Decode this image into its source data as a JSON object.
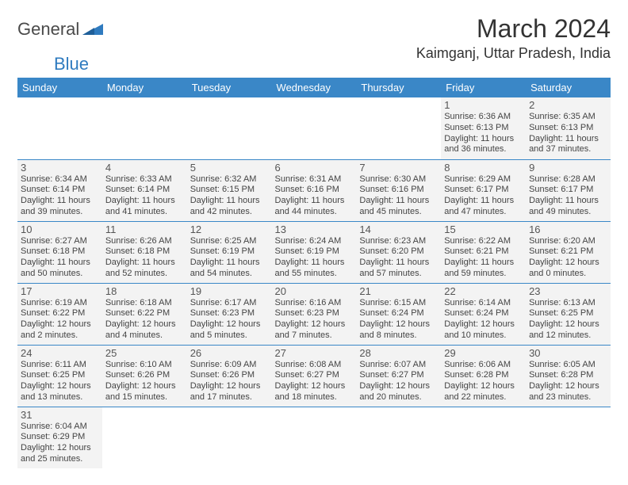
{
  "logo": {
    "part1": "General",
    "part2": "Blue",
    "triangle_color": "#2f7bbf"
  },
  "title": "March 2024",
  "location": "Kaimganj, Uttar Pradesh, India",
  "colors": {
    "header_bg": "#3a87c7",
    "header_text": "#ffffff",
    "cell_bg": "#f3f3f3",
    "rule": "#3a87c7",
    "text": "#333333"
  },
  "font": {
    "family": "Arial",
    "day_header_size": 13,
    "cell_size": 11,
    "title_size": 32,
    "location_size": 18
  },
  "day_headers": [
    "Sunday",
    "Monday",
    "Tuesday",
    "Wednesday",
    "Thursday",
    "Friday",
    "Saturday"
  ],
  "weeks": [
    [
      null,
      null,
      null,
      null,
      null,
      {
        "n": "1",
        "sunrise": "Sunrise: 6:36 AM",
        "sunset": "Sunset: 6:13 PM",
        "day1": "Daylight: 11 hours",
        "day2": "and 36 minutes."
      },
      {
        "n": "2",
        "sunrise": "Sunrise: 6:35 AM",
        "sunset": "Sunset: 6:13 PM",
        "day1": "Daylight: 11 hours",
        "day2": "and 37 minutes."
      }
    ],
    [
      {
        "n": "3",
        "sunrise": "Sunrise: 6:34 AM",
        "sunset": "Sunset: 6:14 PM",
        "day1": "Daylight: 11 hours",
        "day2": "and 39 minutes."
      },
      {
        "n": "4",
        "sunrise": "Sunrise: 6:33 AM",
        "sunset": "Sunset: 6:14 PM",
        "day1": "Daylight: 11 hours",
        "day2": "and 41 minutes."
      },
      {
        "n": "5",
        "sunrise": "Sunrise: 6:32 AM",
        "sunset": "Sunset: 6:15 PM",
        "day1": "Daylight: 11 hours",
        "day2": "and 42 minutes."
      },
      {
        "n": "6",
        "sunrise": "Sunrise: 6:31 AM",
        "sunset": "Sunset: 6:16 PM",
        "day1": "Daylight: 11 hours",
        "day2": "and 44 minutes."
      },
      {
        "n": "7",
        "sunrise": "Sunrise: 6:30 AM",
        "sunset": "Sunset: 6:16 PM",
        "day1": "Daylight: 11 hours",
        "day2": "and 45 minutes."
      },
      {
        "n": "8",
        "sunrise": "Sunrise: 6:29 AM",
        "sunset": "Sunset: 6:17 PM",
        "day1": "Daylight: 11 hours",
        "day2": "and 47 minutes."
      },
      {
        "n": "9",
        "sunrise": "Sunrise: 6:28 AM",
        "sunset": "Sunset: 6:17 PM",
        "day1": "Daylight: 11 hours",
        "day2": "and 49 minutes."
      }
    ],
    [
      {
        "n": "10",
        "sunrise": "Sunrise: 6:27 AM",
        "sunset": "Sunset: 6:18 PM",
        "day1": "Daylight: 11 hours",
        "day2": "and 50 minutes."
      },
      {
        "n": "11",
        "sunrise": "Sunrise: 6:26 AM",
        "sunset": "Sunset: 6:18 PM",
        "day1": "Daylight: 11 hours",
        "day2": "and 52 minutes."
      },
      {
        "n": "12",
        "sunrise": "Sunrise: 6:25 AM",
        "sunset": "Sunset: 6:19 PM",
        "day1": "Daylight: 11 hours",
        "day2": "and 54 minutes."
      },
      {
        "n": "13",
        "sunrise": "Sunrise: 6:24 AM",
        "sunset": "Sunset: 6:19 PM",
        "day1": "Daylight: 11 hours",
        "day2": "and 55 minutes."
      },
      {
        "n": "14",
        "sunrise": "Sunrise: 6:23 AM",
        "sunset": "Sunset: 6:20 PM",
        "day1": "Daylight: 11 hours",
        "day2": "and 57 minutes."
      },
      {
        "n": "15",
        "sunrise": "Sunrise: 6:22 AM",
        "sunset": "Sunset: 6:21 PM",
        "day1": "Daylight: 11 hours",
        "day2": "and 59 minutes."
      },
      {
        "n": "16",
        "sunrise": "Sunrise: 6:20 AM",
        "sunset": "Sunset: 6:21 PM",
        "day1": "Daylight: 12 hours",
        "day2": "and 0 minutes."
      }
    ],
    [
      {
        "n": "17",
        "sunrise": "Sunrise: 6:19 AM",
        "sunset": "Sunset: 6:22 PM",
        "day1": "Daylight: 12 hours",
        "day2": "and 2 minutes."
      },
      {
        "n": "18",
        "sunrise": "Sunrise: 6:18 AM",
        "sunset": "Sunset: 6:22 PM",
        "day1": "Daylight: 12 hours",
        "day2": "and 4 minutes."
      },
      {
        "n": "19",
        "sunrise": "Sunrise: 6:17 AM",
        "sunset": "Sunset: 6:23 PM",
        "day1": "Daylight: 12 hours",
        "day2": "and 5 minutes."
      },
      {
        "n": "20",
        "sunrise": "Sunrise: 6:16 AM",
        "sunset": "Sunset: 6:23 PM",
        "day1": "Daylight: 12 hours",
        "day2": "and 7 minutes."
      },
      {
        "n": "21",
        "sunrise": "Sunrise: 6:15 AM",
        "sunset": "Sunset: 6:24 PM",
        "day1": "Daylight: 12 hours",
        "day2": "and 8 minutes."
      },
      {
        "n": "22",
        "sunrise": "Sunrise: 6:14 AM",
        "sunset": "Sunset: 6:24 PM",
        "day1": "Daylight: 12 hours",
        "day2": "and 10 minutes."
      },
      {
        "n": "23",
        "sunrise": "Sunrise: 6:13 AM",
        "sunset": "Sunset: 6:25 PM",
        "day1": "Daylight: 12 hours",
        "day2": "and 12 minutes."
      }
    ],
    [
      {
        "n": "24",
        "sunrise": "Sunrise: 6:11 AM",
        "sunset": "Sunset: 6:25 PM",
        "day1": "Daylight: 12 hours",
        "day2": "and 13 minutes."
      },
      {
        "n": "25",
        "sunrise": "Sunrise: 6:10 AM",
        "sunset": "Sunset: 6:26 PM",
        "day1": "Daylight: 12 hours",
        "day2": "and 15 minutes."
      },
      {
        "n": "26",
        "sunrise": "Sunrise: 6:09 AM",
        "sunset": "Sunset: 6:26 PM",
        "day1": "Daylight: 12 hours",
        "day2": "and 17 minutes."
      },
      {
        "n": "27",
        "sunrise": "Sunrise: 6:08 AM",
        "sunset": "Sunset: 6:27 PM",
        "day1": "Daylight: 12 hours",
        "day2": "and 18 minutes."
      },
      {
        "n": "28",
        "sunrise": "Sunrise: 6:07 AM",
        "sunset": "Sunset: 6:27 PM",
        "day1": "Daylight: 12 hours",
        "day2": "and 20 minutes."
      },
      {
        "n": "29",
        "sunrise": "Sunrise: 6:06 AM",
        "sunset": "Sunset: 6:28 PM",
        "day1": "Daylight: 12 hours",
        "day2": "and 22 minutes."
      },
      {
        "n": "30",
        "sunrise": "Sunrise: 6:05 AM",
        "sunset": "Sunset: 6:28 PM",
        "day1": "Daylight: 12 hours",
        "day2": "and 23 minutes."
      }
    ],
    [
      {
        "n": "31",
        "sunrise": "Sunrise: 6:04 AM",
        "sunset": "Sunset: 6:29 PM",
        "day1": "Daylight: 12 hours",
        "day2": "and 25 minutes."
      },
      null,
      null,
      null,
      null,
      null,
      null
    ]
  ]
}
